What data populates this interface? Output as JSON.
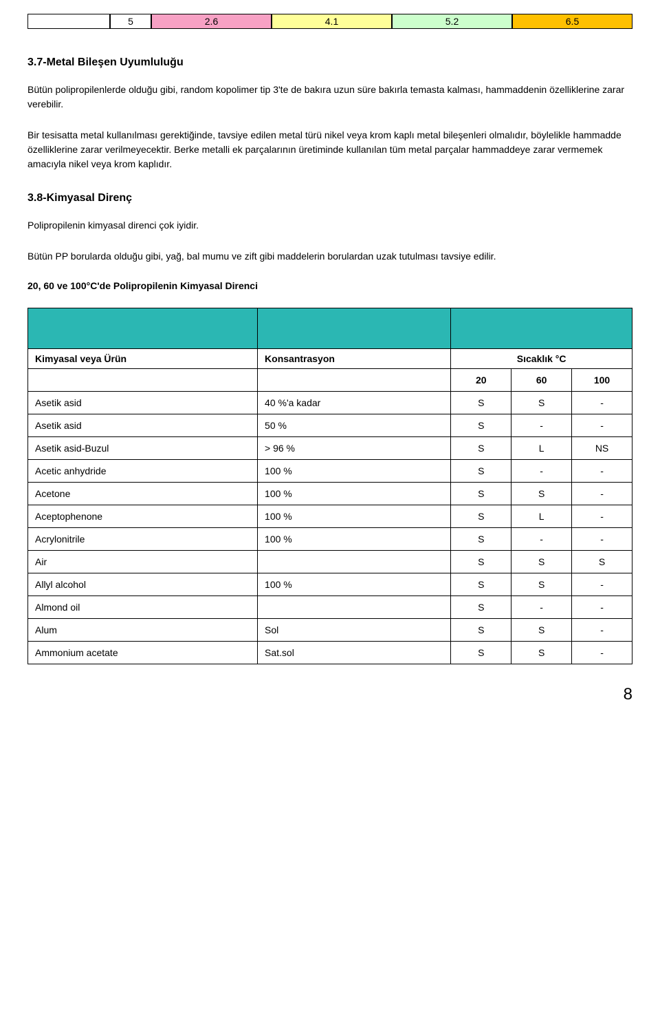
{
  "top_row": {
    "lead_blank": "",
    "num_label": "5",
    "cells": [
      {
        "value": "2.6",
        "bg": "#f7a1c4"
      },
      {
        "value": "4.1",
        "bg": "#ffff99"
      },
      {
        "value": "5.2",
        "bg": "#ccffcc"
      },
      {
        "value": "6.5",
        "bg": "#ffc000"
      }
    ]
  },
  "section_37": {
    "heading": "3.7-Metal Bileşen Uyumluluğu",
    "p1": "Bütün polipropilenlerde olduğu gibi, random kopolimer tip 3'te de bakıra uzun süre bakırla temasta kalması, hammaddenin özelliklerine zarar verebilir.",
    "p2": "Bir tesisatta metal kullanılması gerektiğinde, tavsiye edilen metal türü nikel veya krom kaplı metal bileşenleri olmalıdır, böylelikle hammadde özelliklerine zarar verilmeyecektir. Berke metalli ek parçalarının üretiminde kullanılan tüm metal parçalar hammaddeye zarar vermemek amacıyla nikel veya krom kaplıdır."
  },
  "section_38": {
    "heading": "3.8-Kimyasal Direnç",
    "p1": "Polipropilenin kimyasal direnci çok iyidir.",
    "p2": "Bütün PP borularda olduğu gibi, yağ, bal mumu ve zift gibi maddelerin borulardan uzak tutulması tavsiye edilir.",
    "subheading": "20, 60 ve 100°C'de Polipropilenin Kimyasal Direnci"
  },
  "chem_table": {
    "header_bg": "#2bb7b3",
    "col_chem": "Kimyasal veya Ürün",
    "col_conc": "Konsantrasyon",
    "col_temp": "Sıcaklık °C",
    "temps": [
      "20",
      "60",
      "100"
    ],
    "rows": [
      {
        "chem": "Asetik asid",
        "conc": "40 %'a kadar",
        "t20": "S",
        "t60": "S",
        "t100": "-"
      },
      {
        "chem": "Asetik asid",
        "conc": "50 %",
        "t20": "S",
        "t60": "-",
        "t100": "-"
      },
      {
        "chem": "Asetik asid-Buzul",
        "conc": "> 96 %",
        "t20": "S",
        "t60": "L",
        "t100": "NS"
      },
      {
        "chem": "Acetic anhydride",
        "conc": "100 %",
        "t20": "S",
        "t60": "-",
        "t100": "-"
      },
      {
        "chem": "Acetone",
        "conc": "100 %",
        "t20": "S",
        "t60": "S",
        "t100": "-"
      },
      {
        "chem": "Aceptophenone",
        "conc": "100 %",
        "t20": "S",
        "t60": "L",
        "t100": "-"
      },
      {
        "chem": "Acrylonitrile",
        "conc": "100 %",
        "t20": "S",
        "t60": "-",
        "t100": "-"
      },
      {
        "chem": "Air",
        "conc": "",
        "t20": "S",
        "t60": "S",
        "t100": "S"
      },
      {
        "chem": "Allyl alcohol",
        "conc": "100 %",
        "t20": "S",
        "t60": "S",
        "t100": "-"
      },
      {
        "chem": "Almond oil",
        "conc": "",
        "t20": "S",
        "t60": "-",
        "t100": "-"
      },
      {
        "chem": "Alum",
        "conc": "Sol",
        "t20": "S",
        "t60": "S",
        "t100": "-"
      },
      {
        "chem": "Ammonium acetate",
        "conc": "Sat.sol",
        "t20": "S",
        "t60": "S",
        "t100": "-"
      }
    ]
  },
  "page_number": "8"
}
